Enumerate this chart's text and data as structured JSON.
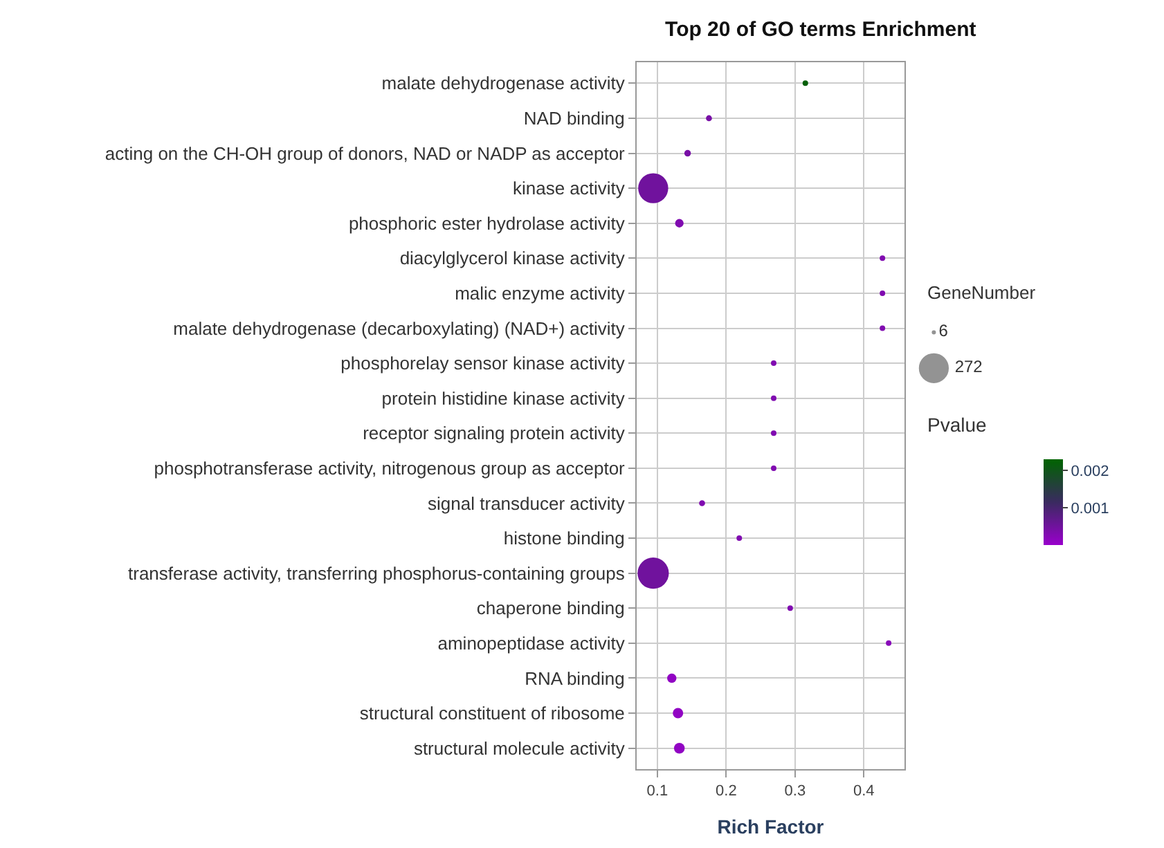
{
  "chart_data": {
    "type": "bubble",
    "title": "Top 20 of GO terms Enrichment",
    "xlabel": "Rich Factor",
    "legend_title": "GeneNumber",
    "clabel": "Pvalue",
    "categories": [
      "malate dehydrogenase activity",
      "NAD binding",
      "acting on the CH-OH group of donors, NAD or NADP as acceptor",
      "kinase activity",
      "phosphoric ester hydrolase activity",
      "diacylglycerol kinase activity",
      "malic enzyme activity",
      "malate dehydrogenase (decarboxylating) (NAD+) activity",
      "phosphorelay sensor kinase activity",
      "protein histidine kinase activity",
      "receptor signaling protein activity",
      "phosphotransferase activity, nitrogenous group as acceptor",
      "signal transducer activity",
      "histone binding",
      "transferase activity, transferring phosphorus-containing groups",
      "chaperone binding",
      "aminopeptidase activity",
      "RNA binding",
      "structural constituent of ribosome",
      "structural molecule activity"
    ],
    "values": [
      0.315,
      0.175,
      0.144,
      0.094,
      0.132,
      0.427,
      0.427,
      0.427,
      0.269,
      0.269,
      0.269,
      0.269,
      0.165,
      0.219,
      0.094,
      0.293,
      0.436,
      0.121,
      0.13,
      0.132
    ],
    "sizes": [
      6,
      10,
      12,
      250,
      20,
      6,
      6,
      6,
      6,
      6,
      6,
      6,
      10,
      8,
      272,
      6,
      6,
      24,
      30,
      32
    ],
    "cvalues": [
      0.0022,
      0.0004,
      0.0004,
      0.0005,
      0.0003,
      0.0003,
      0.0003,
      0.0003,
      0.0003,
      0.0003,
      0.0003,
      0.0003,
      0.0003,
      0.0003,
      0.0005,
      0.0003,
      0.0002,
      0.0001,
      0.0001,
      0.0001
    ],
    "size_legend": [
      6,
      272
    ],
    "clim": [
      0,
      0.0023
    ],
    "cticks": [
      0.001,
      0.002
    ],
    "xlim": [
      0.07,
      0.459
    ],
    "xticks": [
      0.1,
      0.2,
      0.3,
      0.4
    ],
    "grid": true,
    "marker": "circle",
    "orientation": "horizontal"
  }
}
